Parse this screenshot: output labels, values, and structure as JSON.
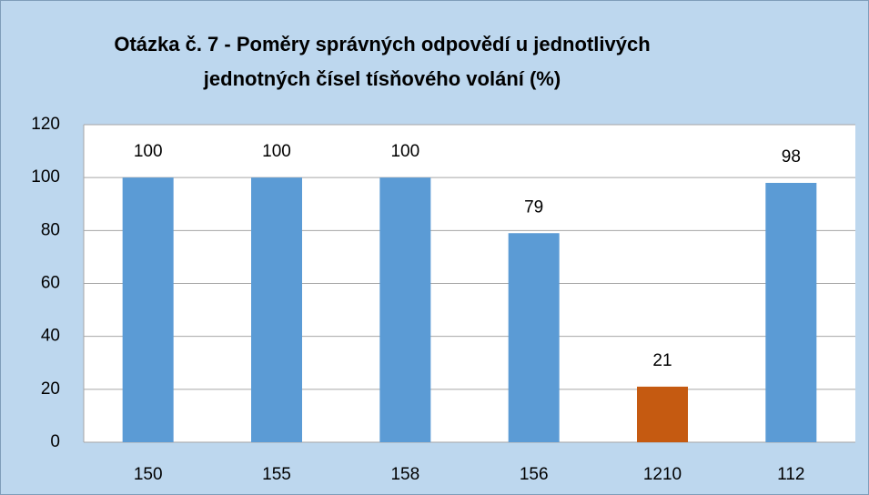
{
  "chart_data": {
    "type": "bar",
    "title": [
      "Otázka č. 7 - Poměry správných odpovědí u jednotlivých",
      "jednotných čísel tísňového volání (%)"
    ],
    "categories": [
      "150",
      "155",
      "158",
      "156",
      "1210",
      "112"
    ],
    "values": [
      100,
      100,
      100,
      79,
      21,
      98
    ],
    "colors": [
      "#5b9bd5",
      "#5b9bd5",
      "#5b9bd5",
      "#5b9bd5",
      "#c55a11",
      "#5b9bd5"
    ],
    "ylim": [
      0,
      120
    ],
    "yticks": [
      0,
      20,
      40,
      60,
      80,
      100,
      120
    ],
    "grid": true
  }
}
